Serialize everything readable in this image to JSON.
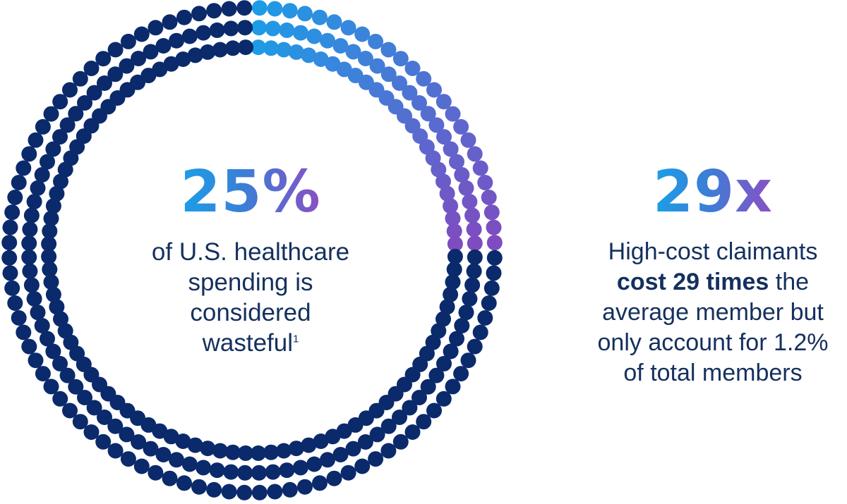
{
  "ring": {
    "total_dots": 100,
    "highlighted_fraction": 0.25,
    "colors": {
      "highlight_start": "#1e9be6",
      "highlight_end": "#7e4cc0",
      "base": "#0a2a6b",
      "text": "#14305e"
    }
  },
  "stat_left": {
    "value": "25%",
    "lines": [
      "of U.S. healthcare",
      "spending is",
      "considered",
      "wasteful"
    ],
    "footnote": "1"
  },
  "stat_right": {
    "value": "29x",
    "line1": "High-cost claimants",
    "line2_bold": "cost 29 times",
    "line2_rest": " the",
    "line3": "average member but",
    "line4": "only account for 1.2%",
    "line5": "of total members"
  }
}
